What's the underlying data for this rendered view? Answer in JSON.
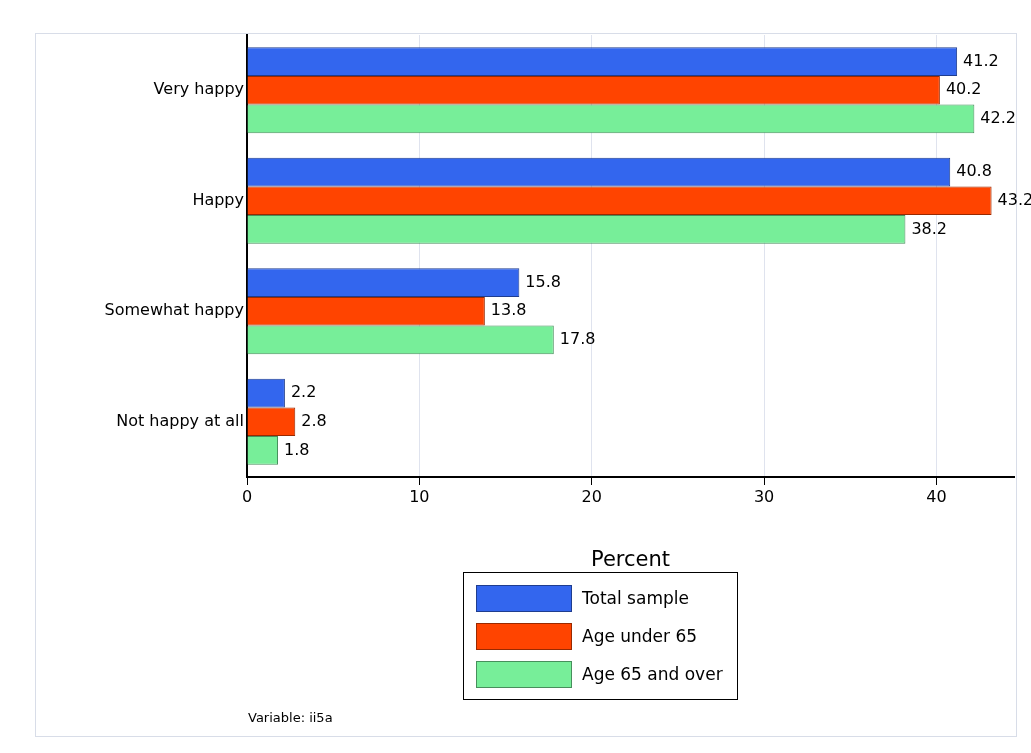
{
  "chart_data": {
    "type": "bar",
    "orientation": "horizontal",
    "xlabel": "Percent",
    "categories": [
      "Very happy",
      "Happy",
      "Somewhat happy",
      "Not happy at all"
    ],
    "series": [
      {
        "name": "Total sample",
        "color": "#3366ee",
        "values": [
          41.2,
          40.8,
          15.8,
          2.2
        ]
      },
      {
        "name": "Age under 65",
        "color": "#ff4400",
        "values": [
          40.2,
          43.2,
          13.8,
          2.8
        ]
      },
      {
        "name": "Age 65 and over",
        "color": "#77ee99",
        "values": [
          42.2,
          38.2,
          17.8,
          1.8
        ]
      }
    ],
    "xlim": [
      0,
      44.5
    ],
    "xticks": [
      0,
      10,
      20,
      30,
      40
    ],
    "grid": "x",
    "legend": "bottom",
    "data_labels": true,
    "annotations": [
      "Variable: ii5a"
    ]
  }
}
